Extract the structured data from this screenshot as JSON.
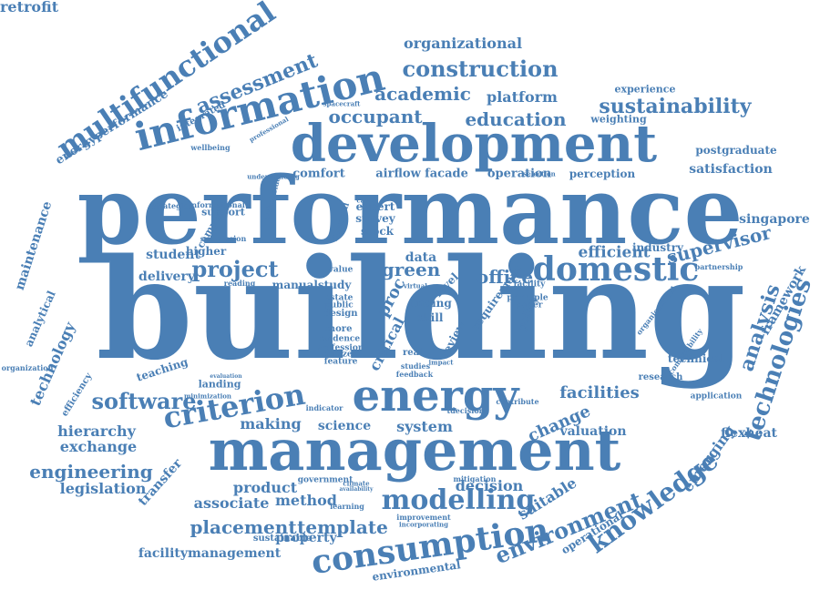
{
  "accent_color": "#4a7fb5",
  "words": [
    "building",
    "performance",
    "management",
    "development",
    "energy",
    "information",
    "consumption",
    "multifunctional",
    "modelling",
    "domestic",
    "criterion",
    "project",
    "construction",
    "assessment",
    "knowledge",
    "technologies",
    "environment",
    "software",
    "sustainability",
    "analysis",
    "engineering",
    "placement",
    "template",
    "occupant",
    "academic",
    "education",
    "organizational",
    "facilities",
    "supervisor",
    "green",
    "office",
    "platform",
    "efficient",
    "change",
    "associate",
    "method",
    "product",
    "facilitymanagement",
    "making",
    "science",
    "exchange",
    "hierarchy",
    "legislation",
    "valuation",
    "decision",
    "emerging",
    "framework",
    "maintenance",
    "technology",
    "analytical",
    "transfer",
    "suitable",
    "environmental",
    "energyperformance",
    "satisfaction",
    "singapore",
    "comfort",
    "airflow",
    "facade",
    "operation",
    "perception",
    "postgraduate",
    "experience",
    "weighting",
    "integrated",
    "system",
    "flexheat",
    "industry",
    "student",
    "delivery",
    "property",
    "sustainable",
    "higher",
    "support",
    "campus",
    "data",
    "proc",
    "critical",
    "level",
    "survey",
    "expert",
    "stock",
    "technical",
    "application",
    "research",
    "teaching",
    "efficiency",
    "organization",
    "operational",
    "manualstudy",
    "landing",
    "government",
    "mitigation",
    "learning",
    "improvement",
    "incorporating",
    "wellbeing",
    "strategies",
    "stakeholder",
    "professional",
    "understanding",
    "spacecraft",
    "informational",
    "submission",
    "selection",
    "finding",
    "skill",
    "case",
    "financial",
    "requirement",
    "virtual",
    "real",
    "more",
    "design",
    "estate",
    "public",
    "value",
    "reading",
    "tdecision",
    "contribute",
    "indicator",
    "climate",
    "availability",
    "compatibility",
    "partnership",
    "organisational",
    "evaluation",
    "minimization",
    "profession",
    "quizzes",
    "feature",
    "evidence",
    "review",
    "paper",
    "policy",
    "principle",
    "facility",
    "feedback",
    "studies",
    "impact",
    "retrofit"
  ]
}
